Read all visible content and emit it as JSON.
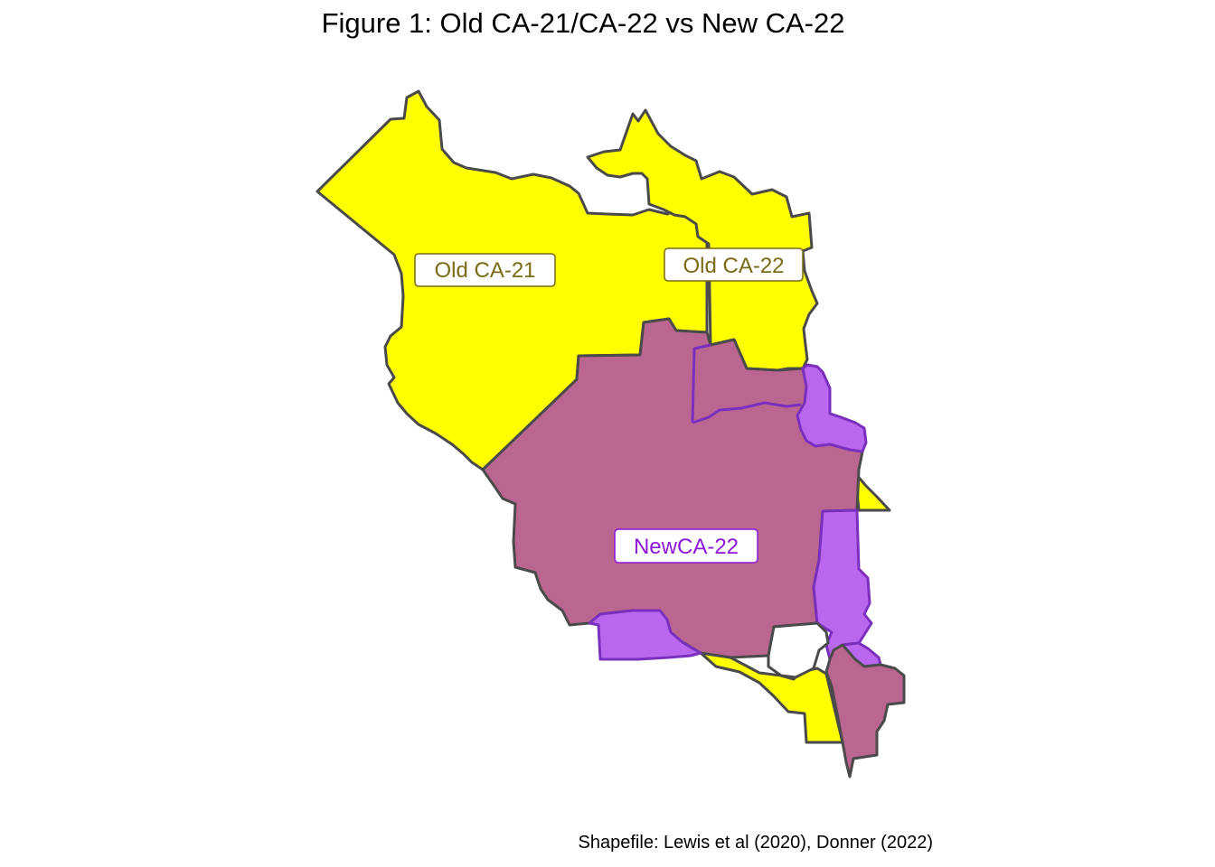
{
  "title": "Figure 1: Old CA-21/CA-22 vs New CA-22",
  "caption": "Shapefile: Lewis et al (2020), Donner (2022)",
  "regions": [
    {
      "name": "old_ca21",
      "label": "Old CA-21",
      "fill": "#FFFF00",
      "label_color": "#7A6A14"
    },
    {
      "name": "old_ca22",
      "label": "Old CA-22",
      "fill": "#FFFF00",
      "label_color": "#7A6A14"
    },
    {
      "name": "new_ca22",
      "label": "NewCA-22",
      "fill": "#BA67F0",
      "overlap_fill": "#BA6690",
      "label_color": "#8F17DB"
    }
  ],
  "colors": {
    "boundary": "#4A4A4A",
    "new_boundary": "#7B2FBE",
    "old_district": "#FFFF00",
    "new_district": "#BA67F0",
    "overlap": "#BA6690"
  }
}
